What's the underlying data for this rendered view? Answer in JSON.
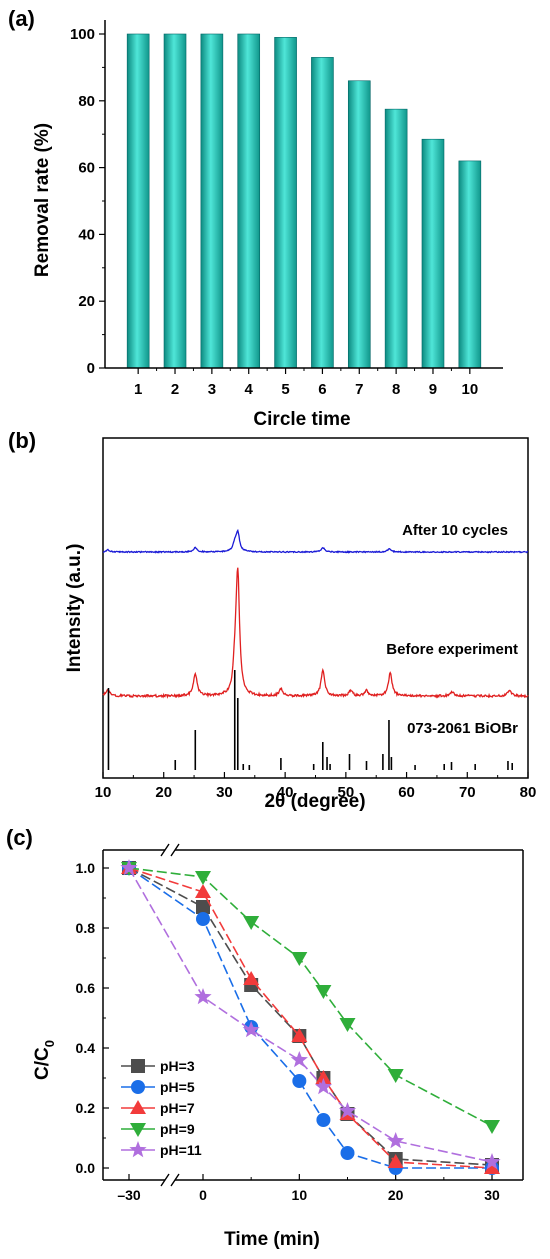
{
  "chart_data": [
    {
      "panel_label": "(a)",
      "type": "bar",
      "categories": [
        "1",
        "2",
        "3",
        "4",
        "5",
        "6",
        "7",
        "8",
        "9",
        "10"
      ],
      "values": [
        100,
        100,
        100,
        100,
        99,
        93,
        86,
        77.5,
        68.5,
        62
      ],
      "xlabel": "Circle time",
      "ylabel": "Removal rate (%)",
      "ylim": [
        0,
        100
      ],
      "yticks": [
        "0",
        "20",
        "40",
        "60",
        "80",
        "100"
      ],
      "bar_color": "#20c4b4",
      "grid": false
    },
    {
      "panel_label": "(b)",
      "type": "line",
      "xlabel": "2θ (degree)",
      "ylabel": "Intensity (a.u.)",
      "xlim": [
        10,
        80
      ],
      "xticks": [
        "10",
        "20",
        "30",
        "40",
        "50",
        "60",
        "70",
        "80"
      ],
      "series": [
        {
          "name": "After 10 cycles",
          "color": "#1a1ad6",
          "peaks": [
            [
              10.8,
              0.1
            ],
            [
              25.2,
              0.2
            ],
            [
              31.7,
              0.35
            ],
            [
              32.2,
              0.85
            ],
            [
              46.2,
              0.2
            ],
            [
              57.2,
              0.15
            ]
          ]
        },
        {
          "name": "Before experiment",
          "color": "#e02020",
          "peaks": [
            [
              10.8,
              0.15
            ],
            [
              25.2,
              0.5
            ],
            [
              31.8,
              0.6
            ],
            [
              32.2,
              2.6
            ],
            [
              39.3,
              0.15
            ],
            [
              46.2,
              0.58
            ],
            [
              50.8,
              0.12
            ],
            [
              53.4,
              0.12
            ],
            [
              57.3,
              0.52
            ],
            [
              67.5,
              0.1
            ],
            [
              76.9,
              0.13
            ]
          ]
        },
        {
          "name": "073-2061 BiOBr",
          "color": "#000000",
          "type": "stick",
          "peaks": [
            [
              10.9,
              0.82
            ],
            [
              21.9,
              0.1
            ],
            [
              25.2,
              0.4
            ],
            [
              31.7,
              1.0
            ],
            [
              32.2,
              0.72
            ],
            [
              33.1,
              0.06
            ],
            [
              34.1,
              0.05
            ],
            [
              39.3,
              0.12
            ],
            [
              44.7,
              0.06
            ],
            [
              46.2,
              0.28
            ],
            [
              46.9,
              0.13
            ],
            [
              47.4,
              0.06
            ],
            [
              50.6,
              0.16
            ],
            [
              53.4,
              0.09
            ],
            [
              56.1,
              0.16
            ],
            [
              57.1,
              0.5
            ],
            [
              57.5,
              0.13
            ],
            [
              61.4,
              0.05
            ],
            [
              66.2,
              0.06
            ],
            [
              67.4,
              0.08
            ],
            [
              71.3,
              0.06
            ],
            [
              76.7,
              0.09
            ],
            [
              77.4,
              0.07
            ]
          ]
        }
      ],
      "grid": false
    },
    {
      "panel_label": "(c)",
      "type": "line",
      "xlabel": "Time (min)",
      "ylabel": "C/C0",
      "xticks": [
        "–30",
        "0",
        "10",
        "20",
        "30"
      ],
      "yticks": [
        "0.0",
        "0.2",
        "0.4",
        "0.6",
        "0.8",
        "1.0"
      ],
      "ylim": [
        -0.04,
        1.06
      ],
      "x": [
        -30,
        0,
        5,
        10,
        12.5,
        15,
        20,
        30
      ],
      "series": [
        {
          "name": "pH=3",
          "color": "#4d4d4d",
          "marker": "square",
          "values": [
            1.0,
            0.87,
            0.61,
            0.44,
            0.3,
            0.18,
            0.03,
            0.01
          ]
        },
        {
          "name": "pH=5",
          "color": "#1a6ee8",
          "marker": "circle",
          "values": [
            1.0,
            0.83,
            0.47,
            0.29,
            0.16,
            0.05,
            0.0,
            0.0
          ]
        },
        {
          "name": "pH=7",
          "color": "#f23b3b",
          "marker": "triangle-up",
          "values": [
            1.0,
            0.92,
            0.63,
            0.44,
            0.3,
            0.18,
            0.02,
            0.0
          ]
        },
        {
          "name": "pH=9",
          "color": "#2fae3a",
          "marker": "triangle-down",
          "values": [
            1.0,
            0.97,
            0.82,
            0.7,
            0.59,
            0.48,
            0.31,
            0.14
          ]
        },
        {
          "name": "pH=11",
          "color": "#b06fde",
          "marker": "star",
          "values": [
            1.0,
            0.57,
            0.46,
            0.36,
            0.27,
            0.19,
            0.09,
            0.02
          ]
        }
      ],
      "legend_position": "bottom-left",
      "grid": false
    }
  ]
}
